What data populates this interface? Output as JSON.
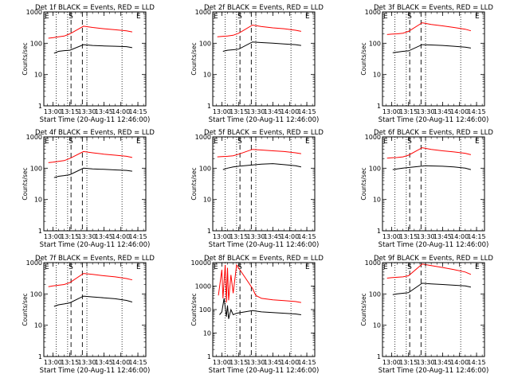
{
  "figure": {
    "xlabel": "Start Time (20-Aug-11 12:46:00)",
    "ylabel": "Counts/sec",
    "x_ticks": [
      "13:00",
      "13:15",
      "13:30",
      "13:45",
      "14:00",
      "14:15"
    ],
    "y_ticks": [
      "1",
      "10",
      "100",
      "1000"
    ],
    "y_ticks_extended": [
      "1",
      "10",
      "100",
      "1000",
      "10000"
    ],
    "markers": {
      "start": "S",
      "end": "E"
    },
    "colors": {
      "events": "#000000",
      "lld": "#ff0000"
    }
  },
  "chart_data": [
    {
      "type": "line",
      "title": "Det 1f BLACK = Events, RED = LLD",
      "xlabel": "Start Time (20-Aug-11 12:46:00)",
      "ylabel": "Counts/sec",
      "y_scale": "log",
      "ylim": [
        1,
        1000
      ],
      "x_ticks": [
        "13:00",
        "13:15",
        "13:30",
        "13:45",
        "14:00",
        "14:15"
      ],
      "dotted_lines_at": [
        "13:03",
        "13:13",
        "13:30",
        "14:01"
      ],
      "dashed_lines_at": [
        "13:16",
        "13:26"
      ],
      "series": [
        {
          "name": "Events",
          "color": "#000000",
          "x": [
            "13:01",
            "13:05",
            "13:10",
            "13:15",
            "13:27",
            "13:35",
            "13:45",
            "13:55",
            "14:05",
            "14:10"
          ],
          "values": [
            48,
            55,
            58,
            60,
            90,
            85,
            82,
            80,
            78,
            72
          ]
        },
        {
          "name": "LLD",
          "color": "#ff0000",
          "x": [
            "12:56",
            "13:00",
            "13:05",
            "13:10",
            "13:15",
            "13:27",
            "13:35",
            "13:45",
            "13:55",
            "14:05",
            "14:10"
          ],
          "values": [
            145,
            150,
            160,
            170,
            200,
            350,
            320,
            290,
            270,
            250,
            230
          ]
        }
      ]
    },
    {
      "type": "line",
      "title": "Det 2f BLACK = Events, RED = LLD",
      "xlabel": "Start Time (20-Aug-11 12:46:00)",
      "ylabel": "Counts/sec",
      "y_scale": "log",
      "ylim": [
        1,
        1000
      ],
      "x_ticks": [
        "13:00",
        "13:15",
        "13:30",
        "13:45",
        "14:00",
        "14:15"
      ],
      "dotted_lines_at": [
        "13:03",
        "13:13",
        "13:30",
        "14:01"
      ],
      "dashed_lines_at": [
        "13:16",
        "13:26"
      ],
      "series": [
        {
          "name": "Events",
          "color": "#000000",
          "x": [
            "13:01",
            "13:05",
            "13:10",
            "13:15",
            "13:27",
            "13:35",
            "13:45",
            "13:55",
            "14:05",
            "14:10"
          ],
          "values": [
            55,
            60,
            62,
            65,
            110,
            105,
            100,
            95,
            90,
            85
          ]
        },
        {
          "name": "LLD",
          "color": "#ff0000",
          "x": [
            "12:56",
            "13:00",
            "13:05",
            "13:10",
            "13:15",
            "13:27",
            "13:35",
            "13:45",
            "13:55",
            "14:05",
            "14:10"
          ],
          "values": [
            160,
            165,
            170,
            180,
            210,
            380,
            340,
            310,
            290,
            260,
            240
          ]
        }
      ]
    },
    {
      "type": "line",
      "title": "Det 3f BLACK = Events, RED = LLD",
      "xlabel": "Start Time (20-Aug-11 12:46:00)",
      "ylabel": "Counts/sec",
      "y_scale": "log",
      "ylim": [
        1,
        1000
      ],
      "x_ticks": [
        "13:00",
        "13:15",
        "13:30",
        "13:45",
        "14:00",
        "14:15"
      ],
      "dotted_lines_at": [
        "13:03",
        "13:13",
        "13:30",
        "14:01"
      ],
      "dashed_lines_at": [
        "13:16",
        "13:26"
      ],
      "series": [
        {
          "name": "Events",
          "color": "#000000",
          "x": [
            "13:01",
            "13:05",
            "13:10",
            "13:15",
            "13:27",
            "13:35",
            "13:45",
            "13:55",
            "14:05",
            "14:10"
          ],
          "values": [
            50,
            52,
            55,
            57,
            90,
            88,
            85,
            80,
            75,
            70
          ]
        },
        {
          "name": "LLD",
          "color": "#ff0000",
          "x": [
            "12:56",
            "13:00",
            "13:05",
            "13:10",
            "13:15",
            "13:27",
            "13:35",
            "13:45",
            "13:55",
            "14:05",
            "14:10"
          ],
          "values": [
            190,
            195,
            200,
            210,
            240,
            450,
            400,
            360,
            320,
            280,
            250
          ]
        }
      ]
    },
    {
      "type": "line",
      "title": "Det 4f BLACK = Events, RED = LLD",
      "xlabel": "Start Time (20-Aug-11 12:46:00)",
      "ylabel": "Counts/sec",
      "y_scale": "log",
      "ylim": [
        1,
        1000
      ],
      "x_ticks": [
        "13:00",
        "13:15",
        "13:30",
        "13:45",
        "14:00",
        "14:15"
      ],
      "dotted_lines_at": [
        "13:03",
        "13:13",
        "13:30",
        "14:01"
      ],
      "dashed_lines_at": [
        "13:16",
        "13:26"
      ],
      "series": [
        {
          "name": "Events",
          "color": "#000000",
          "x": [
            "13:01",
            "13:05",
            "13:10",
            "13:15",
            "13:27",
            "13:35",
            "13:45",
            "13:55",
            "14:05",
            "14:10"
          ],
          "values": [
            50,
            55,
            58,
            62,
            100,
            95,
            92,
            88,
            85,
            80
          ]
        },
        {
          "name": "LLD",
          "color": "#ff0000",
          "x": [
            "12:56",
            "13:00",
            "13:05",
            "13:10",
            "13:15",
            "13:27",
            "13:35",
            "13:45",
            "13:55",
            "14:05",
            "14:10"
          ],
          "values": [
            150,
            155,
            165,
            175,
            205,
            340,
            310,
            280,
            260,
            240,
            220
          ]
        }
      ]
    },
    {
      "type": "line",
      "title": "Det 5f BLACK = Events, RED = LLD",
      "xlabel": "Start Time (20-Aug-11 12:46:00)",
      "ylabel": "Counts/sec",
      "y_scale": "log",
      "ylim": [
        1,
        1000
      ],
      "x_ticks": [
        "13:00",
        "13:15",
        "13:30",
        "13:45",
        "14:00",
        "14:15"
      ],
      "dotted_lines_at": [
        "13:03",
        "13:13",
        "13:30",
        "14:01"
      ],
      "dashed_lines_at": [
        "13:16",
        "13:26"
      ],
      "series": [
        {
          "name": "Events",
          "color": "#000000",
          "x": [
            "13:01",
            "13:05",
            "13:10",
            "13:15",
            "13:30",
            "13:35",
            "13:45",
            "13:55",
            "14:05",
            "14:10"
          ],
          "values": [
            90,
            100,
            110,
            115,
            130,
            135,
            140,
            130,
            120,
            110
          ]
        },
        {
          "name": "LLD",
          "color": "#ff0000",
          "x": [
            "12:56",
            "13:00",
            "13:05",
            "13:10",
            "13:15",
            "13:27",
            "13:35",
            "13:45",
            "13:55",
            "14:05",
            "14:10"
          ],
          "values": [
            230,
            235,
            240,
            250,
            280,
            400,
            380,
            360,
            340,
            310,
            290
          ]
        }
      ]
    },
    {
      "type": "line",
      "title": "Det 6f BLACK = Events, RED = LLD",
      "xlabel": "Start Time (20-Aug-11 12:46:00)",
      "ylabel": "Counts/sec",
      "y_scale": "log",
      "ylim": [
        1,
        1000
      ],
      "x_ticks": [
        "13:00",
        "13:15",
        "13:30",
        "13:45",
        "14:00",
        "14:15"
      ],
      "dotted_lines_at": [
        "13:03",
        "13:13",
        "13:30",
        "14:01"
      ],
      "dashed_lines_at": [
        "13:16",
        "13:26"
      ],
      "series": [
        {
          "name": "Events",
          "color": "#000000",
          "x": [
            "13:01",
            "13:05",
            "13:10",
            "13:15",
            "13:30",
            "13:35",
            "13:45",
            "13:55",
            "14:05",
            "14:10"
          ],
          "values": [
            90,
            95,
            100,
            105,
            120,
            118,
            115,
            110,
            100,
            90
          ]
        },
        {
          "name": "LLD",
          "color": "#ff0000",
          "x": [
            "12:56",
            "13:00",
            "13:05",
            "13:10",
            "13:15",
            "13:27",
            "13:35",
            "13:45",
            "13:55",
            "14:05",
            "14:10"
          ],
          "values": [
            210,
            215,
            220,
            230,
            260,
            450,
            400,
            360,
            330,
            300,
            270
          ]
        }
      ]
    },
    {
      "type": "line",
      "title": "Det 7f BLACK = Events, RED = LLD",
      "xlabel": "Start Time (20-Aug-11 12:46:00)",
      "ylabel": "Counts/sec",
      "y_scale": "log",
      "ylim": [
        1,
        1000
      ],
      "x_ticks": [
        "13:00",
        "13:15",
        "13:30",
        "13:45",
        "14:00",
        "14:15"
      ],
      "dotted_lines_at": [
        "13:03",
        "13:13",
        "13:30",
        "14:01"
      ],
      "dashed_lines_at": [
        "13:16",
        "13:26"
      ],
      "series": [
        {
          "name": "Events",
          "color": "#000000",
          "x": [
            "13:01",
            "13:05",
            "13:10",
            "13:15",
            "13:27",
            "13:35",
            "13:45",
            "13:55",
            "14:05",
            "14:10"
          ],
          "values": [
            40,
            45,
            48,
            52,
            85,
            80,
            75,
            70,
            62,
            55
          ]
        },
        {
          "name": "LLD",
          "color": "#ff0000",
          "x": [
            "12:56",
            "13:00",
            "13:05",
            "13:10",
            "13:15",
            "13:27",
            "13:35",
            "13:45",
            "13:55",
            "14:05",
            "14:10"
          ],
          "values": [
            170,
            180,
            190,
            200,
            230,
            450,
            420,
            380,
            350,
            310,
            280
          ]
        }
      ]
    },
    {
      "type": "line",
      "title": "Det 8f BLACK = Events, RED = LLD",
      "xlabel": "Start Time (20-Aug-11 12:46:00)",
      "ylabel": "Counts/sec",
      "y_scale": "log",
      "ylim": [
        1,
        10000
      ],
      "x_ticks": [
        "13:00",
        "13:15",
        "13:30",
        "13:45",
        "14:00",
        "14:15"
      ],
      "dotted_lines_at": [
        "13:03",
        "13:13",
        "13:30",
        "14:01"
      ],
      "dashed_lines_at": [
        "13:16",
        "13:26"
      ],
      "series": [
        {
          "name": "Events",
          "color": "#000000",
          "x": [
            "12:58",
            "13:00",
            "13:02",
            "13:04",
            "13:05",
            "13:06",
            "13:08",
            "13:10",
            "13:13",
            "13:27",
            "13:35",
            "13:45",
            "13:55",
            "14:05",
            "14:10"
          ],
          "values": [
            60,
            80,
            300,
            50,
            150,
            40,
            100,
            60,
            70,
            90,
            80,
            75,
            70,
            65,
            60
          ]
        },
        {
          "name": "LLD",
          "color": "#ff0000",
          "x": [
            "12:57",
            "13:00",
            "13:01",
            "13:03",
            "13:04",
            "13:05",
            "13:06",
            "13:08",
            "13:10",
            "13:13",
            "13:27",
            "13:30",
            "13:35",
            "13:45",
            "13:55",
            "14:05",
            "14:10"
          ],
          "values": [
            400,
            5000,
            300,
            8000,
            200,
            6000,
            250,
            3000,
            500,
            8000,
            800,
            400,
            300,
            260,
            240,
            220,
            200
          ]
        }
      ]
    },
    {
      "type": "line",
      "title": "Det 9f BLACK = Events, RED = LLD",
      "xlabel": "Start Time (20-Aug-11 12:46:00)",
      "ylabel": "Counts/sec",
      "y_scale": "log",
      "ylim": [
        1,
        1000
      ],
      "x_ticks": [
        "13:00",
        "13:15",
        "13:30",
        "13:45",
        "14:00",
        "14:15"
      ],
      "dotted_lines_at": [
        "13:03",
        "13:13",
        "13:30",
        "14:01"
      ],
      "dashed_lines_at": [
        "13:16",
        "13:26"
      ],
      "series": [
        {
          "name": "Events",
          "color": "#000000",
          "x": [
            "13:01",
            "13:05",
            "13:10",
            "13:15",
            "13:27",
            "13:35",
            "13:45",
            "13:55",
            "14:05",
            "14:10"
          ],
          "values": [
            95,
            100,
            105,
            110,
            220,
            210,
            200,
            190,
            180,
            165
          ]
        },
        {
          "name": "LLD",
          "color": "#ff0000",
          "x": [
            "12:56",
            "13:00",
            "13:05",
            "13:10",
            "13:15",
            "13:27",
            "13:35",
            "13:45",
            "13:55",
            "14:05",
            "14:10"
          ],
          "values": [
            320,
            330,
            340,
            350,
            380,
            900,
            800,
            700,
            600,
            500,
            420
          ]
        }
      ]
    }
  ]
}
